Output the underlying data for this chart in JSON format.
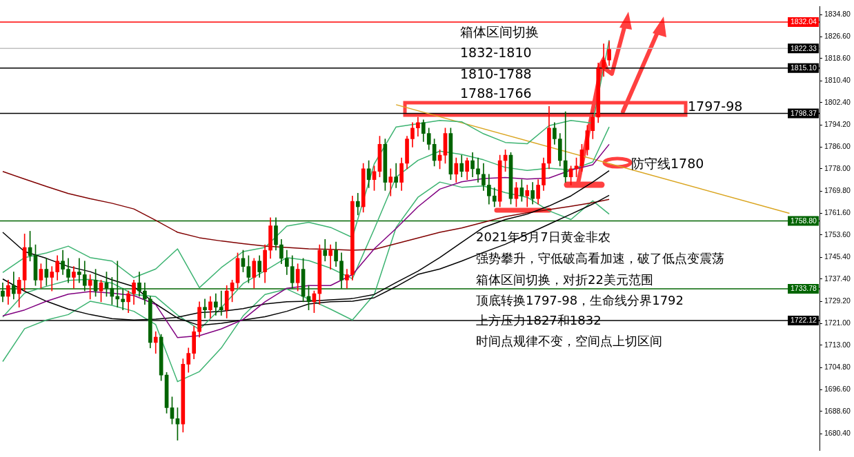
{
  "chart_data": {
    "type": "candlestick",
    "tick_labels": "y",
    "categories": [
      null,
      null,
      null,
      null,
      null,
      null,
      null,
      null,
      null,
      null,
      null,
      null,
      null,
      null,
      null,
      null,
      null,
      null,
      null,
      null,
      null,
      null,
      null,
      null,
      null,
      null,
      null,
      null,
      null,
      null,
      null,
      null,
      null,
      null,
      null,
      null,
      null,
      null,
      null,
      null,
      null,
      null,
      null,
      null,
      null,
      null,
      null,
      null,
      null,
      null,
      null,
      null,
      null,
      null,
      null,
      null,
      null,
      null,
      null,
      null,
      null,
      null,
      null,
      null,
      null,
      null,
      null,
      null,
      null,
      null,
      null,
      null,
      null,
      null,
      null,
      null,
      null,
      null,
      null,
      null,
      null,
      null,
      null,
      null,
      null,
      null,
      null,
      null,
      null,
      null,
      null,
      null,
      null,
      null,
      null,
      null,
      null,
      null,
      null,
      null,
      null,
      null,
      null,
      null,
      null,
      null,
      null,
      null,
      null,
      null,
      null,
      null,
      null,
      null,
      null,
      null,
      null,
      null,
      null,
      null,
      null,
      null,
      null,
      null,
      null,
      null,
      null,
      null,
      null,
      null,
      null,
      null,
      null,
      null,
      null,
      null,
      null,
      null,
      null,
      null,
      null,
      null,
      null,
      null,
      null,
      null,
      null,
      null,
      null,
      null
    ],
    "ohlc": [
      [
        1733,
        1736,
        1729,
        1731
      ],
      [
        1731,
        1737,
        1728,
        1735
      ],
      [
        1735,
        1740,
        1730,
        1732
      ],
      [
        1732,
        1738,
        1727,
        1737
      ],
      [
        1737,
        1754,
        1733,
        1749
      ],
      [
        1749,
        1755,
        1744,
        1746
      ],
      [
        1746,
        1750,
        1735,
        1737
      ],
      [
        1737,
        1743,
        1734,
        1741
      ],
      [
        1741,
        1745,
        1735,
        1738
      ],
      [
        1738,
        1742,
        1733,
        1740
      ],
      [
        1740,
        1746,
        1737,
        1744
      ],
      [
        1744,
        1748,
        1739,
        1741
      ],
      [
        1741,
        1745,
        1736,
        1738
      ],
      [
        1738,
        1742,
        1734,
        1740
      ],
      [
        1740,
        1745,
        1736,
        1739
      ],
      [
        1739,
        1744,
        1733,
        1735
      ],
      [
        1735,
        1739,
        1730,
        1737
      ],
      [
        1737,
        1741,
        1731,
        1733
      ],
      [
        1733,
        1737,
        1729,
        1736
      ],
      [
        1736,
        1740,
        1731,
        1734
      ],
      [
        1734,
        1738,
        1728,
        1731
      ],
      [
        1731,
        1744,
        1727,
        1730
      ],
      [
        1730,
        1734,
        1726,
        1729
      ],
      [
        1729,
        1733,
        1725,
        1732
      ],
      [
        1732,
        1737,
        1728,
        1736
      ],
      [
        1736,
        1740,
        1731,
        1733
      ],
      [
        1733,
        1736,
        1728,
        1730
      ],
      [
        1730,
        1731,
        1712,
        1714
      ],
      [
        1714,
        1718,
        1710,
        1716
      ],
      [
        1716,
        1717,
        1700,
        1702
      ],
      [
        1702,
        1703,
        1688,
        1690
      ],
      [
        1690,
        1694,
        1684,
        1686
      ],
      [
        1686,
        1690,
        1678,
        1684
      ],
      [
        1684,
        1708,
        1681,
        1706
      ],
      [
        1706,
        1712,
        1703,
        1710
      ],
      [
        1710,
        1720,
        1708,
        1718
      ],
      [
        1718,
        1729,
        1716,
        1727
      ],
      [
        1727,
        1730,
        1723,
        1726
      ],
      [
        1726,
        1731,
        1723,
        1729
      ],
      [
        1729,
        1732,
        1724,
        1727
      ],
      [
        1727,
        1733,
        1724,
        1726
      ],
      [
        1726,
        1735,
        1723,
        1733
      ],
      [
        1733,
        1737,
        1729,
        1736
      ],
      [
        1736,
        1747,
        1734,
        1745
      ],
      [
        1745,
        1748,
        1740,
        1742
      ],
      [
        1742,
        1746,
        1736,
        1738
      ],
      [
        1738,
        1745,
        1734,
        1744
      ],
      [
        1744,
        1746,
        1738,
        1740
      ],
      [
        1740,
        1750,
        1736,
        1748
      ],
      [
        1748,
        1760,
        1745,
        1757
      ],
      [
        1757,
        1760,
        1748,
        1750
      ],
      [
        1750,
        1752,
        1743,
        1745
      ],
      [
        1745,
        1748,
        1739,
        1742
      ],
      [
        1742,
        1746,
        1734,
        1736
      ],
      [
        1736,
        1743,
        1733,
        1741
      ],
      [
        1741,
        1745,
        1729,
        1731
      ],
      [
        1731,
        1735,
        1726,
        1729
      ],
      [
        1729,
        1733,
        1725,
        1732
      ],
      [
        1732,
        1750,
        1728,
        1748
      ],
      [
        1748,
        1752,
        1744,
        1746
      ],
      [
        1746,
        1750,
        1741,
        1748
      ],
      [
        1748,
        1751,
        1742,
        1744
      ],
      [
        1744,
        1747,
        1734,
        1737
      ],
      [
        1737,
        1741,
        1734,
        1739
      ],
      [
        1739,
        1768,
        1737,
        1766
      ],
      [
        1766,
        1769,
        1761,
        1764
      ],
      [
        1764,
        1780,
        1762,
        1778
      ],
      [
        1778,
        1781,
        1771,
        1774
      ],
      [
        1774,
        1779,
        1770,
        1777
      ],
      [
        1777,
        1790,
        1775,
        1787
      ],
      [
        1787,
        1789,
        1770,
        1773
      ],
      [
        1773,
        1778,
        1768,
        1775
      ],
      [
        1775,
        1780,
        1771,
        1773
      ],
      [
        1773,
        1782,
        1770,
        1780
      ],
      [
        1780,
        1790,
        1778,
        1789
      ],
      [
        1789,
        1795,
        1786,
        1793
      ],
      [
        1793,
        1797,
        1790,
        1795
      ],
      [
        1795,
        1796,
        1788,
        1791
      ],
      [
        1791,
        1793,
        1785,
        1787
      ],
      [
        1787,
        1789,
        1779,
        1781
      ],
      [
        1781,
        1785,
        1778,
        1783
      ],
      [
        1783,
        1793,
        1780,
        1791
      ],
      [
        1791,
        1793,
        1774,
        1776
      ],
      [
        1776,
        1782,
        1773,
        1780
      ],
      [
        1780,
        1783,
        1775,
        1777
      ],
      [
        1777,
        1782,
        1774,
        1781
      ],
      [
        1781,
        1784,
        1775,
        1778
      ],
      [
        1778,
        1782,
        1773,
        1776
      ],
      [
        1776,
        1780,
        1770,
        1772
      ],
      [
        1772,
        1776,
        1765,
        1768
      ],
      [
        1768,
        1771,
        1764,
        1766
      ],
      [
        1766,
        1783,
        1764,
        1781
      ],
      [
        1781,
        1785,
        1777,
        1783
      ],
      [
        1783,
        1784,
        1765,
        1767
      ],
      [
        1767,
        1773,
        1764,
        1771
      ],
      [
        1771,
        1774,
        1766,
        1768
      ],
      [
        1768,
        1772,
        1764,
        1770
      ],
      [
        1770,
        1773,
        1765,
        1767
      ],
      [
        1767,
        1774,
        1765,
        1772
      ],
      [
        1772,
        1782,
        1770,
        1780
      ],
      [
        1780,
        1801,
        1778,
        1793
      ],
      [
        1793,
        1795,
        1787,
        1789
      ],
      [
        1789,
        1791,
        1779,
        1781
      ],
      [
        1781,
        1799,
        1773,
        1775
      ],
      [
        1775,
        1779,
        1772,
        1778
      ],
      [
        1778,
        1782,
        1775,
        1779
      ],
      [
        1779,
        1787,
        1777,
        1785
      ],
      [
        1785,
        1794,
        1783,
        1792
      ],
      [
        1792,
        1798,
        1789,
        1797
      ],
      [
        1797,
        1817,
        1795,
        1815
      ],
      [
        1815,
        1824,
        1812,
        1818
      ],
      [
        1818,
        1825,
        1816,
        1822
      ],
      null,
      null,
      null,
      null,
      null,
      null,
      null,
      null,
      null,
      null,
      null,
      null,
      null,
      null,
      null,
      null,
      null,
      null,
      null,
      null,
      null,
      null,
      null,
      null,
      null,
      null,
      null,
      null,
      null,
      null,
      null,
      null,
      null,
      null,
      null,
      null,
      null,
      null
    ],
    "series": [
      {
        "type": "line",
        "color": "#800080",
        "values": [
          1723.8,
          null,
          null,
          null,
          1726,
          null,
          null,
          null,
          1729.2,
          null,
          null,
          null,
          1731.8,
          null,
          null,
          null,
          1732.8,
          null,
          null,
          null,
          1732.2,
          null,
          null,
          null,
          1731.3,
          null,
          null,
          null,
          1728,
          null,
          null,
          null,
          1715.8,
          null,
          null,
          null,
          1716.5,
          null,
          null,
          null,
          1719,
          null,
          null,
          null,
          1722.5,
          null,
          null,
          null,
          1729,
          null,
          null,
          null,
          1734,
          null,
          null,
          null,
          1735,
          null,
          null,
          null,
          1735,
          null,
          null,
          null,
          1739,
          null,
          null,
          null,
          1748.5,
          null,
          null,
          null,
          1756,
          null,
          null,
          null,
          1764,
          null,
          null,
          null,
          1770.5,
          null,
          null,
          null,
          1773.2,
          null,
          null,
          null,
          1774.4,
          null,
          null,
          null,
          1774.8,
          null,
          null,
          null,
          1774.2,
          null,
          null,
          null,
          1774.6,
          null,
          null,
          null,
          1777.5,
          null,
          null,
          null,
          1779.5,
          null,
          null,
          1787,
          null,
          null,
          null,
          null,
          null,
          null,
          null,
          null,
          null,
          null,
          null,
          null,
          null,
          null,
          null,
          null,
          null,
          null,
          null,
          null,
          null,
          null,
          null,
          null,
          null,
          null,
          null,
          null,
          null,
          null,
          null,
          null,
          null,
          null,
          null,
          null,
          null,
          null
        ]
      },
      {
        "type": "line",
        "color": "#000000",
        "values": [
          1754.6,
          null,
          null,
          null,
          1747.5,
          null,
          null,
          null,
          1745,
          null,
          null,
          null,
          1742,
          null,
          null,
          null,
          1740.1,
          null,
          null,
          null,
          1737.1,
          null,
          null,
          null,
          1734.6,
          null,
          null,
          null,
          1728.2,
          null,
          null,
          null,
          1723,
          null,
          null,
          null,
          1720.3,
          null,
          null,
          null,
          1721.1,
          null,
          null,
          null,
          1722.3,
          null,
          null,
          null,
          1723.5,
          null,
          null,
          null,
          1725.5,
          null,
          null,
          null,
          1728.2,
          null,
          null,
          null,
          1729,
          null,
          null,
          null,
          1729.2,
          null,
          null,
          null,
          1730.5,
          null,
          null,
          null,
          1734.6,
          null,
          null,
          null,
          1739.1,
          null,
          null,
          null,
          1741.1,
          null,
          null,
          null,
          1744,
          null,
          null,
          null,
          1747.2,
          null,
          null,
          null,
          1750.2,
          null,
          null,
          null,
          1753.9,
          null,
          null,
          null,
          1757.6,
          null,
          null,
          null,
          1761.3,
          null,
          null,
          null,
          1765,
          null,
          null,
          1768.2,
          null,
          null,
          null,
          null,
          null,
          null,
          null,
          null,
          null,
          null,
          null,
          null,
          null,
          null,
          null,
          null,
          null,
          null,
          null,
          null,
          null,
          null,
          null,
          null,
          null,
          null,
          null,
          null,
          null,
          null,
          null,
          null,
          null,
          null,
          null,
          null,
          null,
          null
        ]
      },
      {
        "type": "line",
        "color": "#000000",
        "values": [
          1737.4,
          null,
          null,
          null,
          1732.9,
          null,
          null,
          null,
          1729.2,
          null,
          null,
          null,
          1726.3,
          null,
          null,
          null,
          1724.3,
          null,
          null,
          null,
          1722.8,
          null,
          null,
          null,
          1722.3,
          null,
          null,
          null,
          1722.6,
          null,
          null,
          null,
          1723.3,
          null,
          null,
          null,
          1725,
          null,
          null,
          null,
          1725.5,
          null,
          null,
          null,
          1726.5,
          null,
          null,
          null,
          1728.2,
          null,
          null,
          null,
          1729,
          null,
          null,
          null,
          1729.2,
          null,
          null,
          null,
          1729.7,
          null,
          null,
          null,
          1730.2,
          null,
          null,
          null,
          1731.7,
          null,
          null,
          null,
          1736.1,
          null,
          null,
          null,
          1740.3,
          null,
          null,
          null,
          1745.3,
          null,
          null,
          null,
          1750.9,
          null,
          null,
          null,
          1756.4,
          null,
          null,
          null,
          1759.3,
          null,
          null,
          null,
          1761.3,
          null,
          null,
          null,
          1764.3,
          null,
          null,
          null,
          1768,
          null,
          null,
          null,
          1773.1,
          null,
          null,
          1777.3,
          null,
          null,
          null,
          null,
          null,
          null,
          null,
          null,
          null,
          null,
          null,
          null,
          null,
          null,
          null,
          null,
          null,
          null,
          null,
          null,
          null,
          null,
          null,
          null,
          null,
          null,
          null,
          null,
          null,
          null,
          null,
          null,
          null,
          null,
          null,
          null,
          null,
          null
        ]
      },
      {
        "type": "line",
        "color": "#800000",
        "values": [
          1777,
          null,
          null,
          null,
          1774.2,
          null,
          null,
          null,
          1771.5,
          null,
          null,
          null,
          1768.9,
          null,
          null,
          null,
          1767,
          null,
          null,
          null,
          1765.3,
          null,
          null,
          null,
          1763.2,
          null,
          null,
          null,
          1759,
          null,
          null,
          null,
          1754.6,
          null,
          null,
          null,
          1752.6,
          null,
          null,
          null,
          1751.4,
          null,
          null,
          null,
          1750.4,
          null,
          null,
          null,
          1749.5,
          null,
          null,
          null,
          1749,
          null,
          null,
          null,
          1748.5,
          null,
          null,
          null,
          1748.3,
          null,
          null,
          null,
          1748,
          null,
          null,
          null,
          1748.3,
          null,
          null,
          null,
          1750.4,
          null,
          null,
          null,
          1752.5,
          null,
          null,
          null,
          1754.6,
          null,
          null,
          null,
          1756.2,
          null,
          null,
          null,
          1758.3,
          null,
          null,
          null,
          1760.4,
          null,
          null,
          null,
          1761.8,
          null,
          null,
          null,
          1763,
          null,
          null,
          null,
          1764.2,
          null,
          null,
          null,
          1765.5,
          null,
          null,
          1766.7,
          null,
          null,
          null,
          null,
          null,
          null,
          null,
          null,
          null,
          null,
          null,
          null,
          null,
          null,
          null,
          null,
          null,
          null,
          null,
          null,
          null,
          null,
          null,
          null,
          null,
          null,
          null,
          null,
          null,
          null,
          null,
          null,
          null,
          null,
          null,
          null,
          null,
          null
        ]
      },
      {
        "type": "line",
        "color": "#3cb371",
        "values": [
          1739.8,
          null,
          null,
          null,
          1745.3,
          null,
          null,
          null,
          1747,
          null,
          null,
          null,
          1749.5,
          null,
          null,
          null,
          1745.3,
          null,
          null,
          null,
          1744,
          null,
          null,
          null,
          1737.9,
          null,
          null,
          null,
          1741.1,
          null,
          null,
          null,
          1748.5,
          null,
          null,
          null,
          1734.2,
          null,
          null,
          null,
          1741.6,
          null,
          null,
          null,
          1747.5,
          null,
          null,
          null,
          1749,
          null,
          null,
          null,
          1756.9,
          null,
          null,
          null,
          1758.3,
          null,
          null,
          null,
          1756.4,
          null,
          null,
          null,
          1752.7,
          null,
          null,
          null,
          1779.8,
          null,
          null,
          null,
          1793.4,
          null,
          null,
          null,
          1794.6,
          null,
          null,
          null,
          1795.8,
          null,
          null,
          null,
          1795.3,
          null,
          null,
          null,
          1790.9,
          null,
          null,
          null,
          1787.7,
          null,
          null,
          null,
          1787.2,
          null,
          null,
          null,
          1793.9,
          null,
          null,
          null,
          1795.8,
          null,
          null,
          null,
          1794.8,
          null,
          null,
          1825.4,
          null,
          null,
          null,
          null,
          null,
          null,
          null,
          null,
          null,
          null,
          null,
          null,
          null,
          null,
          null,
          null,
          null,
          null,
          null,
          null,
          null,
          null,
          null,
          null,
          null,
          null,
          null,
          null,
          null,
          null,
          null,
          null,
          null,
          null,
          null,
          null,
          null,
          null
        ]
      },
      {
        "type": "line",
        "color": "#3cb371",
        "values": [
          1723.4,
          null,
          null,
          null,
          1732.2,
          null,
          null,
          null,
          1734.7,
          null,
          null,
          null,
          1736.9,
          null,
          null,
          null,
          1737.3,
          null,
          null,
          null,
          1735.9,
          null,
          null,
          null,
          1731.7,
          null,
          null,
          null,
          1730.9,
          null,
          null,
          null,
          1724.1,
          null,
          null,
          null,
          1718.8,
          null,
          null,
          null,
          1726.8,
          null,
          null,
          null,
          1735.7,
          null,
          null,
          null,
          1740.4,
          null,
          null,
          null,
          1745.3,
          null,
          null,
          null,
          1744.2,
          null,
          null,
          null,
          1741.4,
          null,
          null,
          null,
          1737.5,
          null,
          null,
          null,
          1755.8,
          null,
          null,
          null,
          1774.9,
          null,
          null,
          null,
          1781.1,
          null,
          null,
          null,
          1784.5,
          null,
          null,
          null,
          1783.3,
          null,
          null,
          null,
          1781.3,
          null,
          null,
          null,
          1778.5,
          null,
          null,
          null,
          1777.4,
          null,
          null,
          null,
          1778.2,
          null,
          null,
          null,
          1777.6,
          null,
          null,
          null,
          1780.5,
          null,
          null,
          1793.4,
          null,
          null,
          null,
          null,
          null,
          null,
          null,
          null,
          null,
          null,
          null,
          null,
          null,
          null,
          null,
          null,
          null,
          null,
          null,
          null,
          null,
          null,
          null,
          null,
          null,
          null,
          null,
          null,
          null,
          null,
          null,
          null,
          null,
          null,
          null,
          null,
          null,
          null
        ]
      },
      {
        "type": "line",
        "color": "#3cb371",
        "values": [
          1707,
          null,
          null,
          null,
          1719.1,
          null,
          null,
          null,
          1722.3,
          null,
          null,
          null,
          1724.3,
          null,
          null,
          null,
          1729.2,
          null,
          null,
          null,
          1727.7,
          null,
          null,
          null,
          1725.5,
          null,
          null,
          null,
          1720.6,
          null,
          null,
          null,
          1699.6,
          null,
          null,
          null,
          1703.3,
          null,
          null,
          null,
          1712,
          null,
          null,
          null,
          1723.8,
          null,
          null,
          null,
          1731.7,
          null,
          null,
          null,
          1733.7,
          null,
          null,
          null,
          1730,
          null,
          null,
          null,
          1726.3,
          null,
          null,
          null,
          1722.3,
          null,
          null,
          null,
          1731.7,
          null,
          null,
          null,
          1756.4,
          null,
          null,
          null,
          1767.5,
          null,
          null,
          null,
          1773.1,
          null,
          null,
          null,
          1771.2,
          null,
          null,
          null,
          1771.7,
          null,
          null,
          null,
          1769.2,
          null,
          null,
          null,
          1767.5,
          null,
          null,
          null,
          1762.5,
          null,
          null,
          null,
          1759.3,
          null,
          null,
          null,
          1766.2,
          null,
          null,
          1761.3,
          null,
          null,
          null,
          null,
          null,
          null,
          null,
          null,
          null,
          null,
          null,
          null,
          null,
          null,
          null,
          null,
          null,
          null,
          null,
          null,
          null,
          null,
          null,
          null,
          null,
          null,
          null,
          null,
          null,
          null,
          null,
          null,
          null,
          null,
          null,
          null,
          null,
          null
        ]
      },
      {
        "type": "line",
        "color": "#daa520",
        "values": [
          null,
          null,
          null,
          null,
          null,
          null,
          null,
          null,
          null,
          null,
          null,
          null,
          null,
          null,
          null,
          null,
          null,
          null,
          null,
          null,
          null,
          null,
          null,
          null,
          null,
          null,
          null,
          null,
          null,
          null,
          null,
          null,
          null,
          null,
          null,
          null,
          null,
          null,
          null,
          null,
          null,
          null,
          null,
          null,
          null,
          null,
          null,
          null,
          null,
          null,
          null,
          null,
          null,
          null,
          null,
          null,
          null,
          null,
          null,
          null,
          null,
          null,
          null,
          null,
          null,
          null,
          null,
          null,
          null,
          null,
          null,
          null,
          1801.6,
          null,
          null,
          null,
          null,
          null,
          null,
          null,
          null,
          null,
          null,
          null,
          null,
          null,
          null,
          null,
          null,
          null,
          null,
          null,
          null,
          null,
          null,
          null,
          null,
          null,
          null,
          null,
          null,
          null,
          null,
          null,
          null,
          null,
          null,
          null,
          null,
          null,
          null,
          null,
          null,
          null,
          null,
          null,
          null,
          null,
          null,
          null,
          null,
          null,
          null,
          null,
          null,
          null,
          null,
          null,
          null,
          null,
          null,
          null,
          null,
          null,
          null,
          null,
          null,
          null,
          null,
          null,
          null,
          null,
          null,
          null,
          1761.6,
          null,
          null,
          null,
          null,
          null
        ]
      }
    ],
    "ylim": [
      1674.2,
      1837.8
    ],
    "yticks": [
      {
        "value": 1680.4,
        "label": "1680.40"
      },
      {
        "value": 1688.6,
        "label": "1688.60"
      },
      {
        "value": 1696.6,
        "label": "1696.60"
      },
      {
        "value": 1704.8,
        "label": "1704.80"
      },
      {
        "value": 1713,
        "label": "1713.00"
      },
      {
        "value": 1721,
        "label": "1721.00"
      },
      {
        "value": 1729.2,
        "label": "1729.20"
      },
      {
        "value": 1737.4,
        "label": "1737.40"
      },
      {
        "value": 1745.4,
        "label": "1745.40"
      },
      {
        "value": 1753.6,
        "label": "1753.60"
      },
      {
        "value": 1761.6,
        "label": "1761.60"
      },
      {
        "value": 1769.8,
        "label": "1769.80"
      },
      {
        "value": 1778,
        "label": "1778.00"
      },
      {
        "value": 1786,
        "label": "1786.00"
      },
      {
        "value": 1794.2,
        "label": "1794.20"
      },
      {
        "value": 1802.4,
        "label": "1802.40"
      },
      {
        "value": 1810.4,
        "label": "1810.40"
      },
      {
        "value": 1818.6,
        "label": "1818.60"
      },
      {
        "value": 1826.6,
        "label": "1826.60"
      },
      {
        "value": 1834.8,
        "label": "1834.80"
      }
    ],
    "ref_lines": [
      {
        "axis": "y",
        "value": 1832.04,
        "label": "1832.04",
        "color": "#ff0000"
      },
      {
        "axis": "y",
        "value": 1822.33,
        "label": "1822.33",
        "color": "#c0c0c0"
      },
      {
        "axis": "y",
        "value": 1815.1,
        "label": "1815.10",
        "color": "#000000"
      },
      {
        "axis": "y",
        "value": 1798.37,
        "label": "1798.37",
        "color": "#000000"
      },
      {
        "axis": "y",
        "value": 1758.8,
        "label": "1758.80",
        "color": "#006400"
      },
      {
        "axis": "y",
        "value": 1733.78,
        "label": "1733.78",
        "color": "#006400"
      },
      {
        "axis": "y",
        "value": 1722.12,
        "label": "1722.12",
        "color": "#000000"
      }
    ],
    "annotations": [
      "箱体区间切换",
      "1832-1810",
      "1810-1788",
      "1788-1766",
      "1797-98",
      "防守线1780",
      "2021年5月7日黄金非农",
      "强势攀升，守低破高看加速，破了低点变震荡",
      "箱体区间切换，对折22美元范围",
      "顶底转换1797-98，生命线分界1792",
      "上方压力1827和1832",
      "时间点规律不变，空间点上切区间"
    ]
  }
}
